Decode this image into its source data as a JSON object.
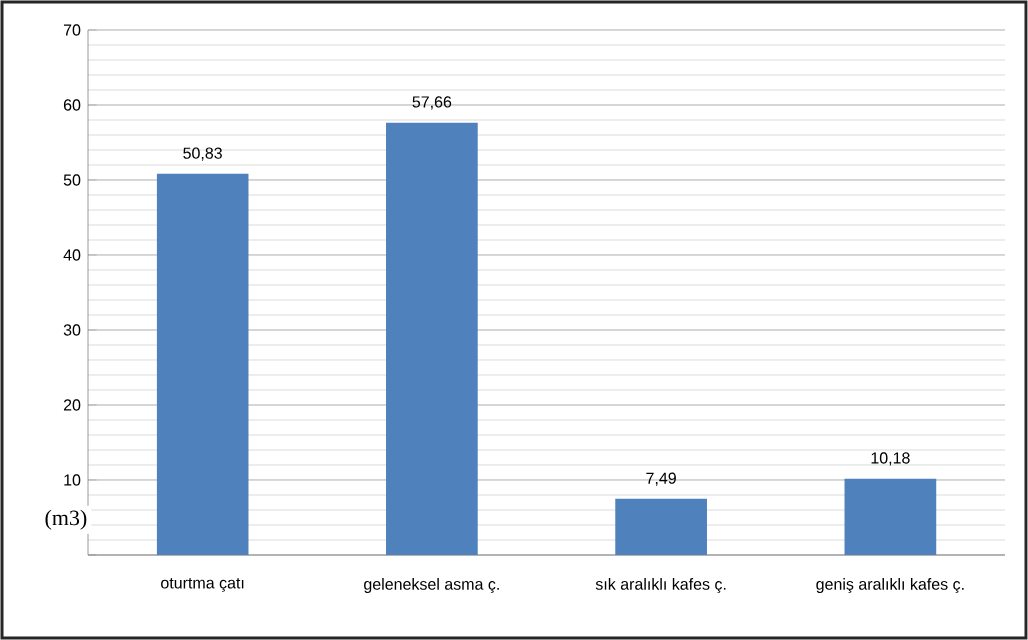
{
  "chart_data": {
    "type": "bar",
    "ylabel": "(m3)",
    "categories": [
      "oturtma çatı",
      "geleneksel asma ç.",
      "sık aralıklı kafes ç.",
      "geniş aralıklı kafes ç."
    ],
    "values": [
      50.83,
      57.66,
      7.49,
      10.18
    ],
    "value_labels": [
      "50,83",
      "57,66",
      "7,49",
      "10,18"
    ],
    "color": "#4f81bd",
    "ylim": [
      0,
      70
    ],
    "yticks": [
      {
        "value": 0,
        "label": null
      },
      10,
      20,
      30,
      40,
      50,
      60,
      70
    ],
    "grid": "y"
  }
}
